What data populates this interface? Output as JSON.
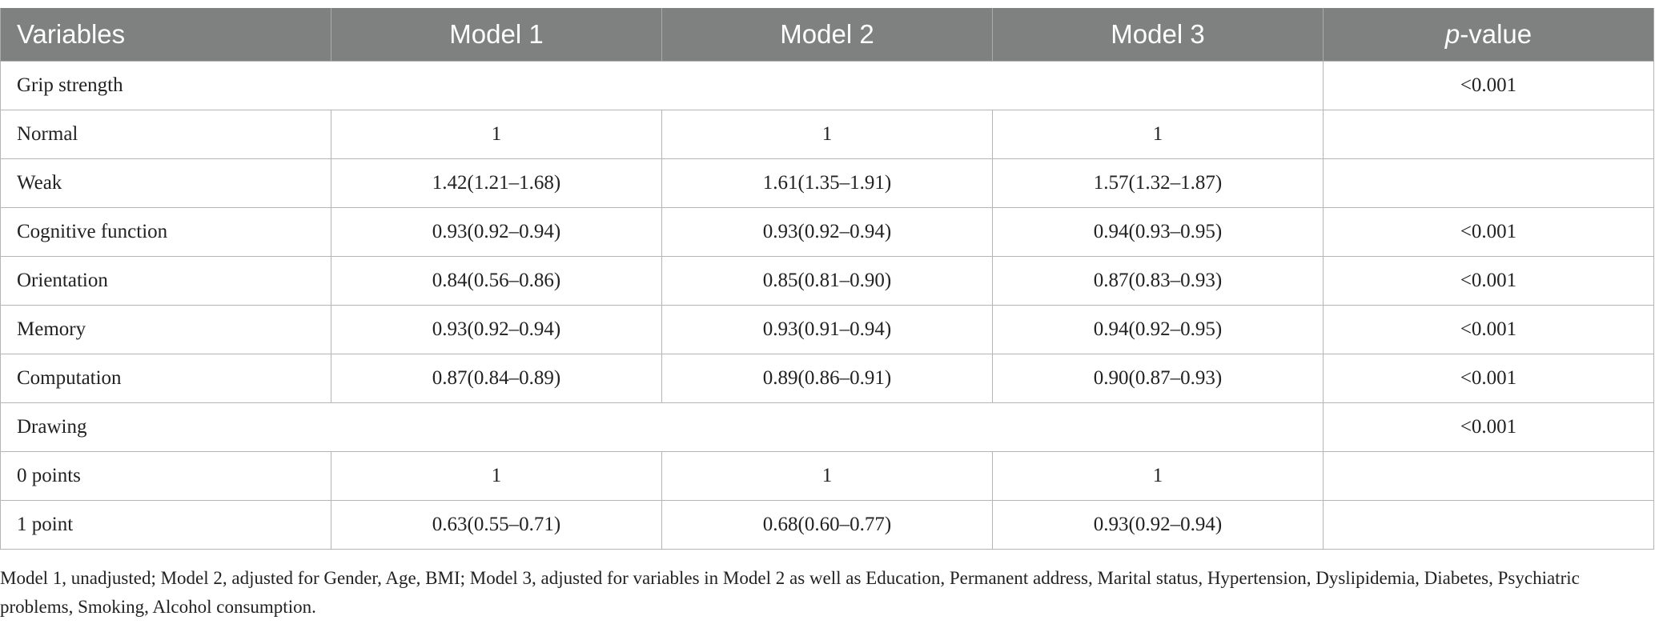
{
  "table": {
    "header": [
      "Variables",
      "Model 1",
      "Model 2",
      "Model 3",
      {
        "italic": "p",
        "rest": "-value"
      }
    ],
    "rows": [
      {
        "label": "Grip strength",
        "p": "<0.001"
      },
      {
        "label": "Normal",
        "models": [
          "1",
          "1",
          "1"
        ]
      },
      {
        "label": "Weak",
        "models": [
          "1.42(1.21–1.68)",
          "1.61(1.35–1.91)",
          "1.57(1.32–1.87)"
        ]
      },
      {
        "label": "Cognitive function",
        "models": [
          "0.93(0.92–0.94)",
          "0.93(0.92–0.94)",
          "0.94(0.93–0.95)"
        ],
        "p": "<0.001"
      },
      {
        "label": "Orientation",
        "models": [
          "0.84(0.56–0.86)",
          "0.85(0.81–0.90)",
          "0.87(0.83–0.93)"
        ],
        "p": "<0.001"
      },
      {
        "label": "Memory",
        "models": [
          "0.93(0.92–0.94)",
          "0.93(0.91–0.94)",
          "0.94(0.92–0.95)"
        ],
        "p": "<0.001"
      },
      {
        "label": "Computation",
        "models": [
          "0.87(0.84–0.89)",
          "0.89(0.86–0.91)",
          "0.90(0.87–0.93)"
        ],
        "p": "<0.001"
      },
      {
        "label": "Drawing",
        "p": "<0.001"
      },
      {
        "label": "0 points",
        "models": [
          "1",
          "1",
          "1"
        ]
      },
      {
        "label": "1 point",
        "models": [
          "0.63(0.55–0.71)",
          "0.68(0.60–0.77)",
          "0.93(0.92–0.94)"
        ]
      }
    ],
    "footnote": "Model 1, unadjusted; Model 2, adjusted for Gender, Age, BMI; Model 3, adjusted for variables in Model 2 as well as Education, Permanent address, Marital status, Hypertension, Dyslipidemia, Diabetes, Psychiatric problems, Smoking, Alcohol consumption."
  }
}
